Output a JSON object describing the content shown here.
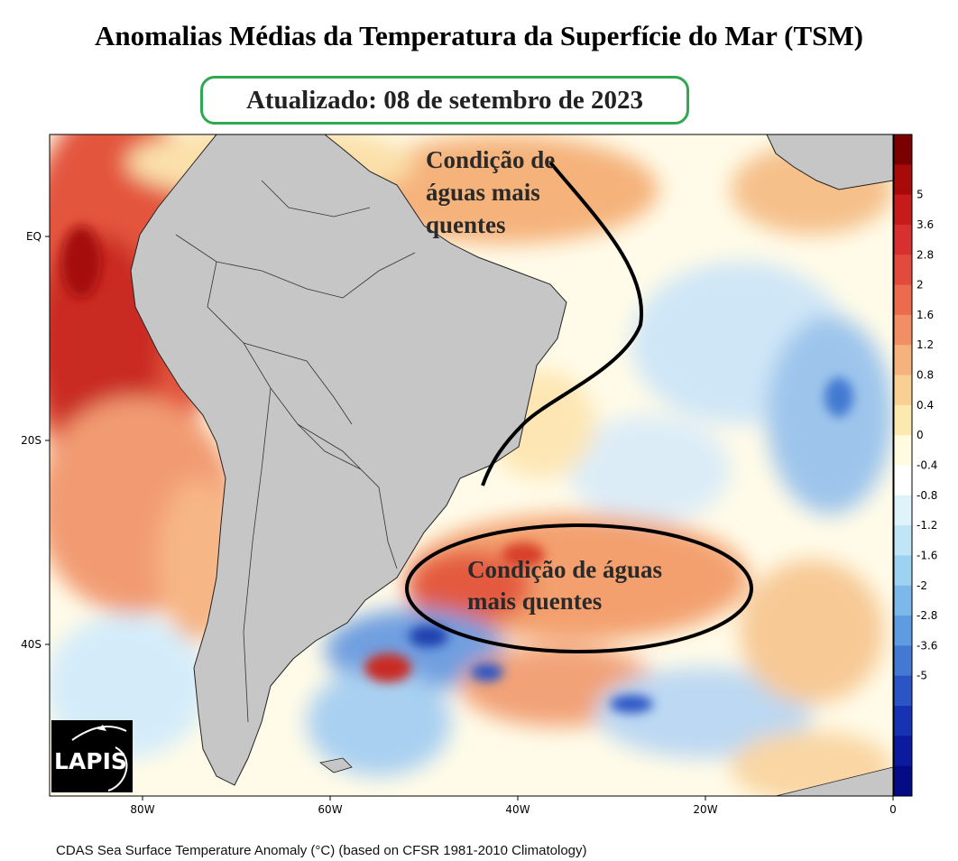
{
  "title": "Anomalias Médias da Temperatura da Superfície do Mar (TSM)",
  "updated_label": "Atualizado: 08 de setembro de 2023",
  "annotations": {
    "north": [
      "Condição de",
      "águas mais",
      "quentes"
    ],
    "south": [
      "Condição de águas",
      "mais quentes"
    ]
  },
  "map": {
    "lat_labels": [
      "EQ",
      "20S",
      "40S"
    ],
    "lon_labels": [
      "80W",
      "60W",
      "40W",
      "20W",
      "0"
    ],
    "land_color": "#c6c6c6",
    "ocean_neutral": "#ffffff"
  },
  "colorbar": {
    "labels": [
      "5",
      "3.6",
      "2.8",
      "2",
      "1.6",
      "1.2",
      "0.8",
      "0.4",
      "0",
      "-0.4",
      "-0.8",
      "-1.2",
      "-1.6",
      "-2",
      "-2.8",
      "-3.6",
      "-5"
    ],
    "colors": [
      "#7a0000",
      "#a80a0a",
      "#c71a1a",
      "#d83030",
      "#e24a3b",
      "#ec6b4e",
      "#f28e65",
      "#f6b27d",
      "#f9cf93",
      "#fbe9ae",
      "#fffbe0",
      "#ffffff",
      "#dff3fb",
      "#bfe5f7",
      "#9dd2f2",
      "#7db8ea",
      "#5f9be0",
      "#4379d2",
      "#2b55c4",
      "#1733b3",
      "#0b1a9e",
      "#050a85"
    ]
  },
  "logo": {
    "text": "LAPIS"
  },
  "caption": "CDAS Sea Surface Temperature Anomaly (°C) (based on CFSR 1981-2010 Climatology)"
}
